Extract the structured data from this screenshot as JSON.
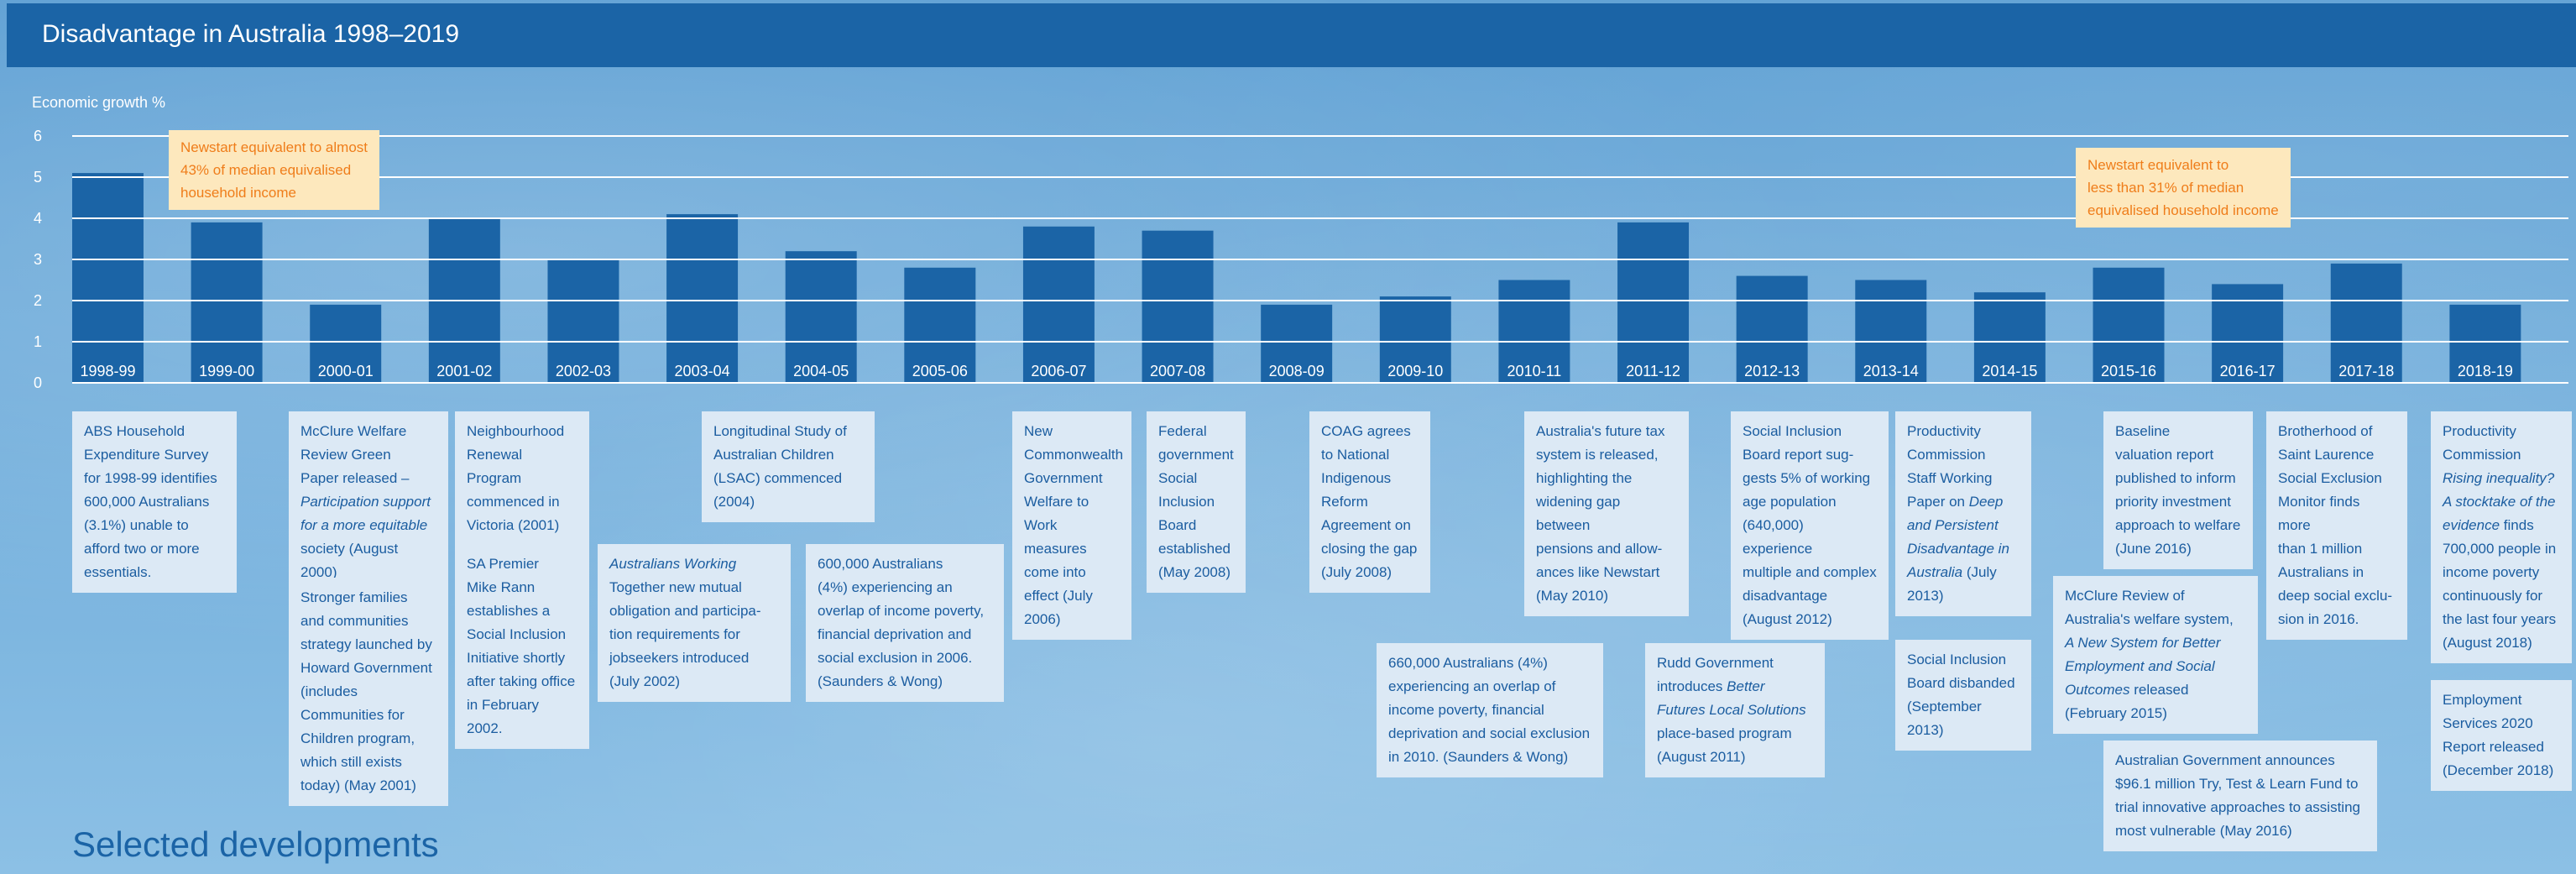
{
  "title": "Disadvantage in Australia 1998–2019",
  "footer_title": "Selected developments",
  "colors": {
    "bar": "#1b64a6",
    "header": "#1b64a6",
    "callout_bg": "#fde8bd",
    "callout_text": "#ef7d1a",
    "note_bg": "#dce9f5",
    "note_text": "#1b5da0"
  },
  "chart_data": {
    "type": "bar",
    "ylabel": "Economic growth %",
    "ylim": [
      0,
      6
    ],
    "yticks": [
      "0",
      "1",
      "2",
      "3",
      "4",
      "5",
      "6"
    ],
    "grid": true,
    "categories": [
      "1998-99",
      "1999-00",
      "2000-01",
      "2001-02",
      "2002-03",
      "2003-04",
      "2004-05",
      "2005-06",
      "2006-07",
      "2007-08",
      "2008-09",
      "2009-10",
      "2010-11",
      "2011-12",
      "2012-13",
      "2013-14",
      "2014-15",
      "2015-16",
      "2016-17",
      "2017-18",
      "2018-19"
    ],
    "values": [
      5.1,
      3.9,
      1.9,
      4.0,
      3.0,
      4.1,
      3.2,
      2.8,
      3.8,
      3.7,
      1.9,
      2.1,
      2.5,
      3.9,
      2.6,
      2.5,
      2.2,
      2.8,
      2.4,
      2.9,
      1.9
    ],
    "annotations": [
      {
        "text_lines": [
          "Newstart equivalent to almost",
          "43% of median equivalised",
          "household income"
        ]
      },
      {
        "text_lines": [
          "Newstart equivalent to",
          "less than 31% of median",
          "equivalised household income"
        ]
      }
    ]
  },
  "notes": [
    {
      "id": "abs",
      "lines": [
        "ABS Household",
        "Expenditure Survey",
        "for 1998-99 identifies",
        "600,000 Australians",
        "(3.1%) unable to",
        "afford two or more",
        "essentials."
      ]
    },
    {
      "id": "mcclure2000",
      "lines": [
        "McClure Welfare",
        "Review Green",
        "Paper released –",
        "Participation support",
        "for a more equitable",
        "society (August 2000)"
      ]
    },
    {
      "id": "stronger",
      "lines": [
        "Stronger families",
        "and communities",
        "strategy launched by",
        "Howard Government",
        "(includes",
        "Communities for",
        "Children program,",
        "which still exists",
        "today) (May 2001)"
      ]
    },
    {
      "id": "neighbourhood",
      "lines": [
        "Neighbourhood",
        "Renewal Program",
        "commenced in",
        "Victoria (2001)"
      ]
    },
    {
      "id": "sapremier",
      "lines": [
        "SA Premier",
        "Mike Rann",
        "establishes a",
        "Social Inclusion",
        "Initiative shortly",
        "after taking office",
        "in February 2002."
      ]
    },
    {
      "id": "awt",
      "lines": [
        "Australians Working",
        "Together new mutual",
        "obligation and participa-",
        "tion requirements for",
        "jobseekers introduced",
        "(July 2002)"
      ]
    },
    {
      "id": "lsac",
      "lines": [
        "Longitudinal Study of",
        "Australian Children",
        "(LSAC) commenced",
        "(2004)"
      ]
    },
    {
      "id": "600k",
      "lines": [
        "600,000 Australians",
        "(4%) experiencing an",
        "overlap of income poverty,",
        "financial deprivation and",
        "social exclusion in 2006.",
        "(Saunders & Wong)"
      ]
    },
    {
      "id": "newcw",
      "lines": [
        "New",
        "Commonwealth",
        "Government",
        "Welfare to",
        "Work measures",
        "come into",
        "effect (July",
        "2006)"
      ]
    },
    {
      "id": "federal",
      "lines": [
        "Federal",
        "government",
        "Social",
        "Inclusion",
        "Board",
        "established",
        "(May 2008)"
      ]
    },
    {
      "id": "coag",
      "lines": [
        "COAG agrees",
        "to National",
        "Indigenous",
        "Reform",
        "Agreement on",
        "closing the gap",
        "(July 2008)"
      ]
    },
    {
      "id": "660k",
      "lines": [
        "660,000 Australians (4%)",
        "experiencing an overlap of",
        "income poverty, financial",
        "deprivation and social exclusion",
        "in 2010. (Saunders & Wong)"
      ]
    },
    {
      "id": "futuretax",
      "lines": [
        "Australia's future tax",
        "system is released,",
        "highlighting the",
        "widening gap between",
        "pensions and allow-",
        "ances like Newstart",
        "(May 2010)"
      ]
    },
    {
      "id": "rudd",
      "lines": [
        "Rudd Government",
        "introduces Better",
        "Futures Local Solutions",
        "place-based program",
        "(August 2011)"
      ]
    },
    {
      "id": "sib2012",
      "lines": [
        "Social Inclusion",
        "Board report sug-",
        "gests 5% of working",
        "age population",
        "(640,000) experience",
        "multiple and complex",
        "disadvantage",
        "(August 2012)"
      ]
    },
    {
      "id": "pc2013",
      "lines": [
        "Productivity",
        "Commission",
        "Staff Working",
        "Paper on Deep",
        "and Persistent",
        "Disadvantage in",
        "Australia (July",
        "2013)"
      ]
    },
    {
      "id": "sibdisband",
      "lines": [
        "Social Inclusion",
        "Board disbanded",
        "(September 2013)"
      ]
    },
    {
      "id": "mcclure2015",
      "lines": [
        "McClure Review of",
        "Australia's welfare system,",
        "A New System for Better",
        "Employment and Social",
        "Outcomes released",
        "(February 2015)"
      ]
    },
    {
      "id": "baseline",
      "lines": [
        "Baseline",
        "valuation report",
        "published to inform",
        "priority investment",
        "approach to welfare",
        "(June 2016)"
      ]
    },
    {
      "id": "tryfund",
      "lines": [
        "Australian Government announces",
        "$96.1 million Try, Test & Learn Fund to",
        "trial innovative approaches to assisting",
        "most vulnerable (May 2016)"
      ]
    },
    {
      "id": "bsl",
      "lines": [
        "Brotherhood of",
        "Saint Laurence",
        "Social Exclusion",
        "Monitor finds more",
        "than 1 million",
        "Australians in",
        "deep social exclu-",
        "sion in 2016."
      ]
    },
    {
      "id": "pc2018",
      "lines": [
        "Productivity",
        "Commission",
        "Rising inequality?",
        "A stocktake of the",
        "evidence finds",
        "700,000 people in",
        "income poverty",
        "continuously for",
        "the last four years",
        "(August 2018)"
      ]
    },
    {
      "id": "es2020",
      "lines": [
        "Employment",
        "Services 2020",
        "Report released",
        "(December 2018)"
      ]
    }
  ]
}
